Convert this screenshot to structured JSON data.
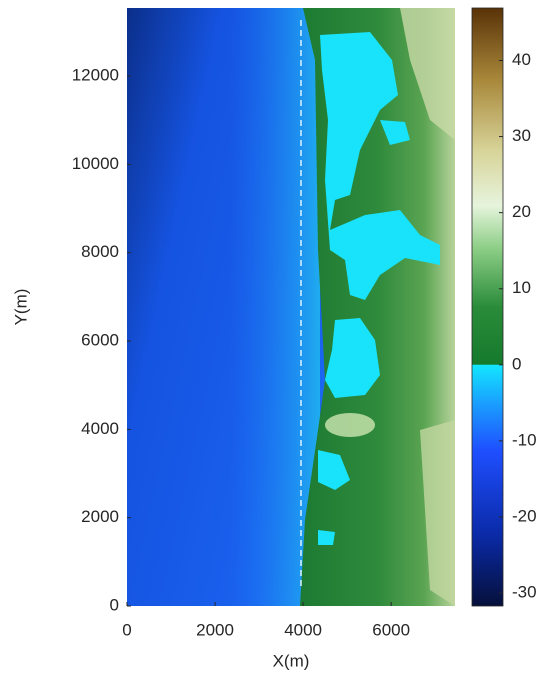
{
  "chart_data": {
    "type": "heatmap",
    "xlabel": "X(m)",
    "ylabel": "Y(m)",
    "xlim": [
      0,
      7450
    ],
    "xticks": [
      0,
      2000,
      4000,
      6000
    ],
    "ylim": [
      0,
      13540
    ],
    "yticks": [
      0,
      2000,
      4000,
      6000,
      8000,
      10000,
      12000
    ],
    "colorbar": {
      "lim": [
        -31.7,
        46.9
      ],
      "ticks": [
        -30,
        -20,
        -10,
        0,
        10,
        20,
        30,
        40
      ]
    }
  }
}
